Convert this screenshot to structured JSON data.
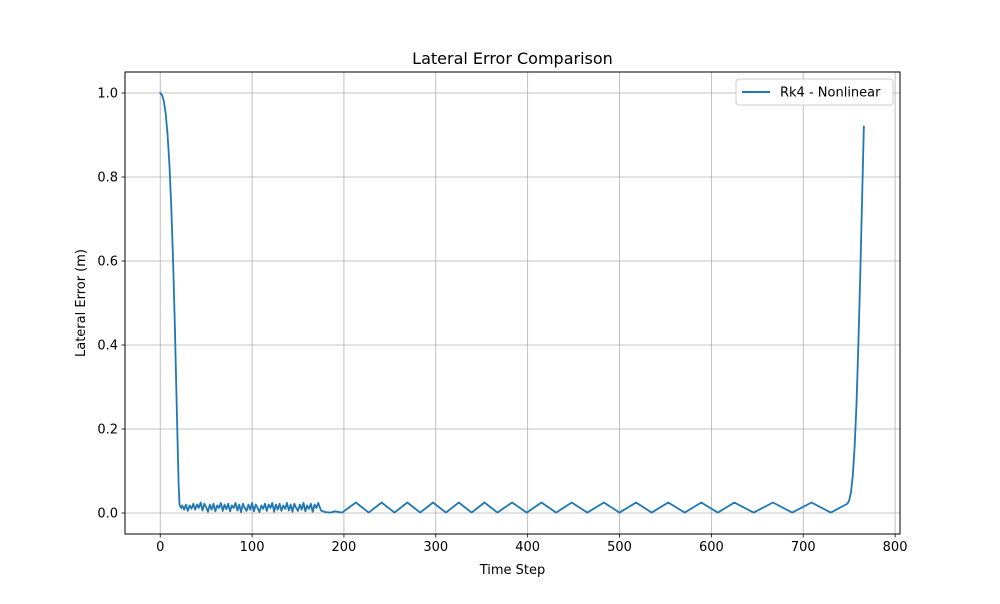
{
  "chart_data": {
    "type": "line",
    "title": "Lateral Error Comparison",
    "xlabel": "Time Step",
    "ylabel": "Lateral Error (m)",
    "xlim": [
      -38.35,
      805.35
    ],
    "ylim": [
      -0.05,
      1.05
    ],
    "grid": true,
    "legend_position": "top-right",
    "xticks": [
      0,
      100,
      200,
      300,
      400,
      500,
      600,
      700,
      800
    ],
    "xtick_labels": [
      "0",
      "100",
      "200",
      "300",
      "400",
      "500",
      "600",
      "700",
      "800"
    ],
    "yticks": [
      0.0,
      0.2,
      0.4,
      0.6,
      0.8,
      1.0
    ],
    "ytick_labels": [
      "0.0",
      "0.2",
      "0.4",
      "0.6",
      "0.8",
      "1.0"
    ],
    "series": [
      {
        "name": "Rk4 - Nonlinear",
        "color": "#1f77b4",
        "x": [
          0,
          2,
          4,
          6,
          8,
          10,
          12,
          14,
          16,
          18,
          20,
          21,
          22,
          23,
          24,
          26,
          28,
          30,
          32,
          34,
          36,
          38,
          40,
          42,
          44,
          46,
          48,
          50,
          52,
          54,
          56,
          58,
          60,
          62,
          64,
          66,
          68,
          70,
          72,
          74,
          76,
          78,
          80,
          82,
          84,
          86,
          88,
          90,
          92,
          94,
          96,
          98,
          100,
          102,
          104,
          106,
          108,
          110,
          112,
          114,
          116,
          118,
          120,
          122,
          124,
          126,
          128,
          130,
          132,
          134,
          136,
          138,
          140,
          142,
          144,
          146,
          148,
          150,
          152,
          154,
          156,
          158,
          160,
          162,
          164,
          166,
          168,
          170,
          172,
          175,
          180,
          185,
          190,
          198,
          213,
          227,
          241,
          255,
          269,
          283,
          297,
          311,
          325,
          339,
          353,
          367,
          383,
          399,
          415,
          431,
          448,
          465,
          483,
          500,
          518,
          535,
          553,
          571,
          589,
          607,
          625,
          646,
          667,
          688,
          709,
          730,
          748,
          750,
          752,
          754,
          756,
          758,
          760,
          762,
          764,
          766
        ],
        "y": [
          1.0,
          0.995,
          0.98,
          0.95,
          0.9,
          0.83,
          0.73,
          0.6,
          0.44,
          0.25,
          0.07,
          0.02,
          0.015,
          0.012,
          0.018,
          0.008,
          0.02,
          0.005,
          0.018,
          0.01,
          0.022,
          0.008,
          0.02,
          0.012,
          0.025,
          0.006,
          0.022,
          0.014,
          0.003,
          0.02,
          0.008,
          0.022,
          0.004,
          0.018,
          0.012,
          0.024,
          0.005,
          0.02,
          0.009,
          0.022,
          0.004,
          0.018,
          0.012,
          0.024,
          0.006,
          0.02,
          0.002,
          0.022,
          0.012,
          0.005,
          0.02,
          0.008,
          0.024,
          0.004,
          0.02,
          0.012,
          0.002,
          0.018,
          0.01,
          0.022,
          0.005,
          0.02,
          0.012,
          0.024,
          0.003,
          0.02,
          0.008,
          0.022,
          0.005,
          0.018,
          0.01,
          0.024,
          0.006,
          0.02,
          0.003,
          0.022,
          0.012,
          0.005,
          0.02,
          0.008,
          0.024,
          0.004,
          0.018,
          0.01,
          0.022,
          0.003,
          0.02,
          0.012,
          0.024,
          0.006,
          0.002,
          0.001,
          0.004,
          0.001,
          0.025,
          0.001,
          0.025,
          0.001,
          0.025,
          0.001,
          0.025,
          0.001,
          0.025,
          0.001,
          0.025,
          0.001,
          0.025,
          0.001,
          0.025,
          0.001,
          0.025,
          0.001,
          0.025,
          0.001,
          0.025,
          0.001,
          0.025,
          0.001,
          0.025,
          0.001,
          0.025,
          0.001,
          0.025,
          0.001,
          0.025,
          0.001,
          0.022,
          0.03,
          0.05,
          0.09,
          0.16,
          0.26,
          0.4,
          0.56,
          0.74,
          0.92
        ]
      }
    ]
  }
}
